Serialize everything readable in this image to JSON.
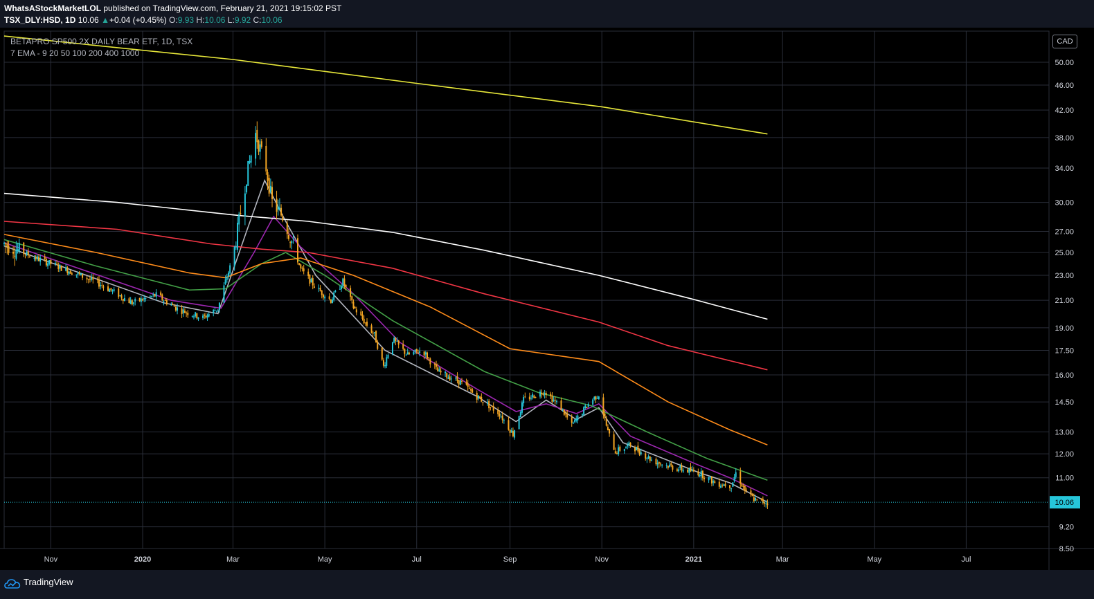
{
  "header": {
    "author": "WhatsAStockMarketLOL",
    "published_text": "published on TradingView.com, February 21, 2021 19:15:02 PST",
    "symbol": "TSX_DLY:HSD, 1D",
    "last": "10.06",
    "change": "+0.04 (+0.45%)",
    "o_label": "O:",
    "o": "9.93",
    "h_label": "H:",
    "h": "10.06",
    "l_label": "L:",
    "l": "9.92",
    "c_label": "C:",
    "c": "10.06"
  },
  "legend": {
    "title": "BETAPRO SP500 2X DAILY BEAR ETF, 1D, TSX",
    "indicator": "7 EMA - 9 20 50 100 200 400 1000"
  },
  "currency_label": "CAD",
  "footer": {
    "brand": "TradingView",
    "logo_icon": "tradingview-cloud-icon"
  },
  "colors": {
    "background": "#000000",
    "grid": "#2a2e39",
    "bull": "#26c6da",
    "bear": "#f5a623",
    "price_line": "#26c6da"
  },
  "chart_data": {
    "type": "candlestick",
    "title": "BETAPRO SP500 2X DAILY BEAR ETF, 1D, TSX",
    "y_scale": "log",
    "ylim": [
      8.5,
      56
    ],
    "y_ticks": [
      "50.00",
      "46.00",
      "42.00",
      "38.00",
      "34.00",
      "30.00",
      "27.00",
      "25.00",
      "23.00",
      "21.00",
      "19.00",
      "17.50",
      "16.00",
      "14.50",
      "13.00",
      "12.00",
      "11.00",
      "10.06",
      "9.20",
      "8.50"
    ],
    "x_ticks": [
      "Nov",
      "2020",
      "Mar",
      "May",
      "Jul",
      "Sep",
      "Nov",
      "2021",
      "Mar",
      "May",
      "Jul"
    ],
    "x_range": [
      "2019-10-01",
      "2021-08-25"
    ],
    "last_price": 10.06,
    "price": [
      [
        "2019-10-01",
        25.8
      ],
      [
        "2019-10-20",
        24.6
      ],
      [
        "2019-11-15",
        23.3
      ],
      [
        "2019-12-05",
        22.2
      ],
      [
        "2019-12-25",
        20.8
      ],
      [
        "2020-01-10",
        21.4
      ],
      [
        "2020-01-25",
        20.3
      ],
      [
        "2020-02-10",
        19.7
      ],
      [
        "2020-02-20",
        20.4
      ],
      [
        "2020-02-25",
        22.5
      ],
      [
        "2020-03-01",
        24.5
      ],
      [
        "2020-03-05",
        28.0
      ],
      [
        "2020-03-10",
        33.0
      ],
      [
        "2020-03-16",
        38.5
      ],
      [
        "2020-03-23",
        34.0
      ],
      [
        "2020-03-27",
        30.0
      ],
      [
        "2020-04-03",
        28.5
      ],
      [
        "2020-04-08",
        26.5
      ],
      [
        "2020-04-15",
        23.5
      ],
      [
        "2020-04-25",
        22.0
      ],
      [
        "2020-05-05",
        21.0
      ],
      [
        "2020-05-13",
        22.5
      ],
      [
        "2020-05-20",
        20.5
      ],
      [
        "2020-06-03",
        18.5
      ],
      [
        "2020-06-09",
        16.5
      ],
      [
        "2020-06-15",
        18.2
      ],
      [
        "2020-06-25",
        17.2
      ],
      [
        "2020-07-05",
        17.5
      ],
      [
        "2020-07-15",
        16.2
      ],
      [
        "2020-07-30",
        15.6
      ],
      [
        "2020-08-10",
        14.8
      ],
      [
        "2020-08-25",
        13.9
      ],
      [
        "2020-09-03",
        12.9
      ],
      [
        "2020-09-10",
        14.6
      ],
      [
        "2020-09-24",
        15.1
      ],
      [
        "2020-10-05",
        14.2
      ],
      [
        "2020-10-12",
        13.3
      ],
      [
        "2020-10-25",
        14.6
      ],
      [
        "2020-10-30",
        14.9
      ],
      [
        "2020-11-05",
        13.0
      ],
      [
        "2020-11-10",
        12.1
      ],
      [
        "2020-11-20",
        12.4
      ],
      [
        "2020-12-05",
        11.7
      ],
      [
        "2020-12-20",
        11.4
      ],
      [
        "2021-01-05",
        11.2
      ],
      [
        "2021-01-15",
        10.8
      ],
      [
        "2021-01-26",
        10.7
      ],
      [
        "2021-01-29",
        11.2
      ],
      [
        "2021-02-05",
        10.4
      ],
      [
        "2021-02-12",
        10.1
      ],
      [
        "2021-02-19",
        10.06
      ]
    ],
    "series": [
      {
        "name": "EMA 9",
        "color": "#b2b5be",
        "points": [
          [
            "2019-10-01",
            25.6
          ],
          [
            "2020-01-15",
            20.8
          ],
          [
            "2020-02-20",
            20.0
          ],
          [
            "2020-03-10",
            27.0
          ],
          [
            "2020-03-22",
            32.5
          ],
          [
            "2020-04-05",
            28.0
          ],
          [
            "2020-04-25",
            23.0
          ],
          [
            "2020-06-10",
            17.5
          ],
          [
            "2020-08-10",
            14.8
          ],
          [
            "2020-09-05",
            13.5
          ],
          [
            "2020-09-25",
            14.6
          ],
          [
            "2020-10-15",
            13.6
          ],
          [
            "2020-10-30",
            14.2
          ],
          [
            "2020-11-15",
            12.5
          ],
          [
            "2021-01-05",
            11.2
          ],
          [
            "2021-01-25",
            10.8
          ],
          [
            "2021-02-19",
            10.06
          ]
        ]
      },
      {
        "name": "EMA 20",
        "color": "#9c27b0",
        "points": [
          [
            "2019-10-01",
            25.9
          ],
          [
            "2020-01-20",
            21.0
          ],
          [
            "2020-02-22",
            20.4
          ],
          [
            "2020-03-15",
            25.0
          ],
          [
            "2020-03-28",
            28.5
          ],
          [
            "2020-04-15",
            25.5
          ],
          [
            "2020-05-20",
            21.5
          ],
          [
            "2020-06-20",
            18.0
          ],
          [
            "2020-08-10",
            15.2
          ],
          [
            "2020-09-05",
            14.0
          ],
          [
            "2020-09-25",
            14.4
          ],
          [
            "2020-10-15",
            13.9
          ],
          [
            "2020-10-30",
            14.4
          ],
          [
            "2020-11-20",
            12.8
          ],
          [
            "2021-01-05",
            11.5
          ],
          [
            "2021-01-25",
            11.0
          ],
          [
            "2021-02-19",
            10.3
          ]
        ]
      },
      {
        "name": "EMA 50",
        "color": "#43a047",
        "points": [
          [
            "2019-10-01",
            26.2
          ],
          [
            "2019-12-01",
            23.8
          ],
          [
            "2020-02-01",
            21.8
          ],
          [
            "2020-02-25",
            21.9
          ],
          [
            "2020-03-20",
            24.0
          ],
          [
            "2020-04-05",
            25.0
          ],
          [
            "2020-05-01",
            23.0
          ],
          [
            "2020-06-15",
            19.5
          ],
          [
            "2020-08-15",
            16.2
          ],
          [
            "2020-09-20",
            15.0
          ],
          [
            "2020-10-25",
            14.3
          ],
          [
            "2020-12-01",
            13.0
          ],
          [
            "2021-01-10",
            11.8
          ],
          [
            "2021-02-19",
            10.9
          ]
        ]
      },
      {
        "name": "EMA 100",
        "color": "#ff8c1a",
        "points": [
          [
            "2019-10-01",
            26.7
          ],
          [
            "2019-12-01",
            25.0
          ],
          [
            "2020-02-01",
            23.2
          ],
          [
            "2020-02-25",
            22.8
          ],
          [
            "2020-03-20",
            24.0
          ],
          [
            "2020-04-15",
            24.5
          ],
          [
            "2020-05-20",
            23.0
          ],
          [
            "2020-07-10",
            20.5
          ],
          [
            "2020-09-01",
            17.6
          ],
          [
            "2020-10-30",
            16.8
          ],
          [
            "2020-12-15",
            14.5
          ],
          [
            "2021-01-25",
            13.1
          ],
          [
            "2021-02-19",
            12.4
          ]
        ]
      },
      {
        "name": "EMA 200",
        "color": "#f23645",
        "points": [
          [
            "2019-10-01",
            28.0
          ],
          [
            "2019-12-15",
            27.2
          ],
          [
            "2020-02-15",
            25.8
          ],
          [
            "2020-03-20",
            25.3
          ],
          [
            "2020-04-20",
            25.0
          ],
          [
            "2020-06-15",
            23.6
          ],
          [
            "2020-08-15",
            21.5
          ],
          [
            "2020-10-30",
            19.4
          ],
          [
            "2020-12-15",
            17.8
          ],
          [
            "2021-02-19",
            16.3
          ]
        ]
      },
      {
        "name": "EMA 400",
        "color": "#ffffff",
        "points": [
          [
            "2019-10-01",
            31.0
          ],
          [
            "2019-12-15",
            30.0
          ],
          [
            "2020-03-05",
            28.6
          ],
          [
            "2020-04-20",
            28.0
          ],
          [
            "2020-06-15",
            26.9
          ],
          [
            "2020-08-15",
            25.2
          ],
          [
            "2020-10-30",
            23.0
          ],
          [
            "2020-12-31",
            21.1
          ],
          [
            "2021-02-19",
            19.6
          ]
        ]
      },
      {
        "name": "EMA 1000",
        "color": "#e8e83a",
        "points": [
          [
            "2019-10-01",
            55.0
          ],
          [
            "2020-03-01",
            50.5
          ],
          [
            "2020-07-01",
            46.3
          ],
          [
            "2020-11-01",
            42.5
          ],
          [
            "2021-02-19",
            38.5
          ]
        ]
      }
    ]
  }
}
